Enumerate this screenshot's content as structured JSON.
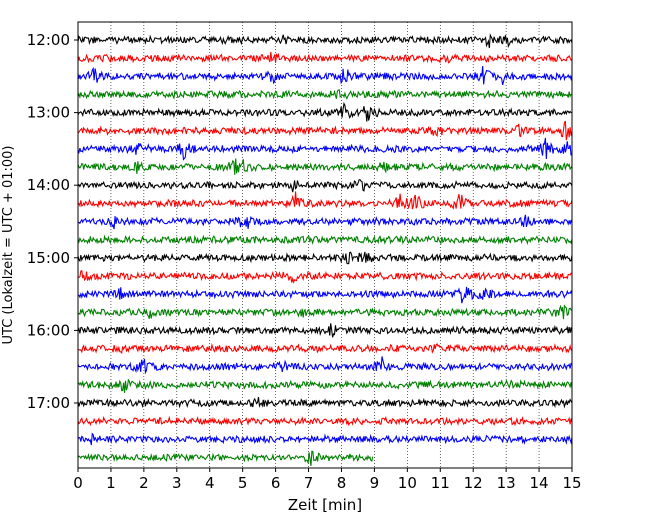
{
  "chart_data": {
    "type": "line",
    "title": "",
    "xlabel": "Zeit  [min]",
    "ylabel": "UTC (Lokalzeit = UTC + 01:00)",
    "xlim": [
      0,
      15
    ],
    "x_ticks": [
      0,
      1,
      2,
      3,
      4,
      5,
      6,
      7,
      8,
      9,
      10,
      11,
      12,
      13,
      14,
      15
    ],
    "x_tick_labels": [
      "0",
      "1",
      "2",
      "3",
      "4",
      "5",
      "6",
      "7",
      "8",
      "9",
      "10",
      "11",
      "12",
      "13",
      "14",
      "15"
    ],
    "vertical_grid": "dotted",
    "row_interval_minutes": 15,
    "y_ticks": [
      "12:00",
      "13:00",
      "14:00",
      "15:00",
      "16:00",
      "17:00"
    ],
    "trace_color_cycle": [
      "#000000",
      "#ff0000",
      "#0000ff",
      "#008000"
    ],
    "series": [
      {
        "start": "12:00",
        "end_min": 15,
        "events": [
          [
            6.3,
            0.5
          ],
          [
            12.5,
            0.6
          ],
          [
            13.1,
            0.5
          ]
        ]
      },
      {
        "start": "12:15",
        "end_min": 15,
        "events": [
          [
            5.9,
            0.4
          ],
          [
            11.2,
            0.3
          ]
        ]
      },
      {
        "start": "12:30",
        "end_min": 15,
        "events": [
          [
            0.5,
            0.7
          ],
          [
            5.9,
            0.5
          ],
          [
            8.1,
            0.9
          ],
          [
            12.3,
            1.0
          ],
          [
            12.9,
            0.6
          ]
        ]
      },
      {
        "start": "12:45",
        "end_min": 15,
        "events": [
          [
            8.0,
            0.3
          ]
        ]
      },
      {
        "start": "13:00",
        "end_min": 15,
        "events": [
          [
            8.1,
            0.8
          ],
          [
            8.8,
            0.9
          ]
        ]
      },
      {
        "start": "13:15",
        "end_min": 15,
        "events": [
          [
            10.9,
            0.5
          ],
          [
            13.4,
            0.4
          ],
          [
            14.8,
            1.0
          ]
        ]
      },
      {
        "start": "13:30",
        "end_min": 15,
        "events": [
          [
            1.8,
            0.6
          ],
          [
            3.2,
            1.0
          ],
          [
            14.2,
            0.9
          ],
          [
            14.9,
            0.8
          ]
        ]
      },
      {
        "start": "13:45",
        "end_min": 15,
        "events": [
          [
            1.8,
            0.4
          ],
          [
            4.8,
            0.7
          ],
          [
            5.0,
            0.6
          ],
          [
            9.3,
            0.4
          ]
        ]
      },
      {
        "start": "14:00",
        "end_min": 15,
        "events": [
          [
            6.5,
            0.6
          ],
          [
            8.6,
            0.5
          ]
        ]
      },
      {
        "start": "14:15",
        "end_min": 15,
        "events": [
          [
            6.6,
            1.0
          ],
          [
            9.8,
            0.8
          ],
          [
            10.3,
            0.9
          ],
          [
            11.6,
            0.8
          ]
        ]
      },
      {
        "start": "14:30",
        "end_min": 15,
        "events": [
          [
            1.1,
            0.4
          ],
          [
            5.1,
            1.0
          ],
          [
            13.6,
            0.4
          ]
        ]
      },
      {
        "start": "14:45",
        "end_min": 15,
        "events": []
      },
      {
        "start": "15:00",
        "end_min": 15,
        "events": [
          [
            8.2,
            0.5
          ],
          [
            8.7,
            0.6
          ]
        ]
      },
      {
        "start": "15:15",
        "end_min": 15,
        "events": [
          [
            0.2,
            0.4
          ],
          [
            6.5,
            0.4
          ]
        ]
      },
      {
        "start": "15:30",
        "end_min": 15,
        "events": [
          [
            1.3,
            0.5
          ],
          [
            11.7,
            1.0
          ],
          [
            12.3,
            0.5
          ]
        ]
      },
      {
        "start": "15:45",
        "end_min": 15,
        "events": [
          [
            2.2,
            0.4
          ],
          [
            6.8,
            0.3
          ],
          [
            14.7,
            0.6
          ]
        ]
      },
      {
        "start": "16:00",
        "end_min": 15,
        "events": [
          [
            7.7,
            0.5
          ]
        ]
      },
      {
        "start": "16:15",
        "end_min": 15,
        "events": [
          [
            1.3,
            0.4
          ],
          [
            10.8,
            0.3
          ]
        ]
      },
      {
        "start": "16:30",
        "end_min": 15,
        "events": [
          [
            2.0,
            0.9
          ],
          [
            6.2,
            0.5
          ],
          [
            9.2,
            1.0
          ]
        ]
      },
      {
        "start": "16:45",
        "end_min": 15,
        "events": [
          [
            1.4,
            0.6
          ],
          [
            13.1,
            0.5
          ]
        ]
      },
      {
        "start": "17:00",
        "end_min": 15,
        "events": [
          [
            5.5,
            0.6
          ]
        ]
      },
      {
        "start": "17:15",
        "end_min": 15,
        "events": []
      },
      {
        "start": "17:30",
        "end_min": 15,
        "events": [
          [
            0.4,
            0.4
          ]
        ]
      },
      {
        "start": "17:45",
        "end_min": 8.95,
        "events": [
          [
            7.1,
            0.6
          ]
        ]
      }
    ]
  }
}
